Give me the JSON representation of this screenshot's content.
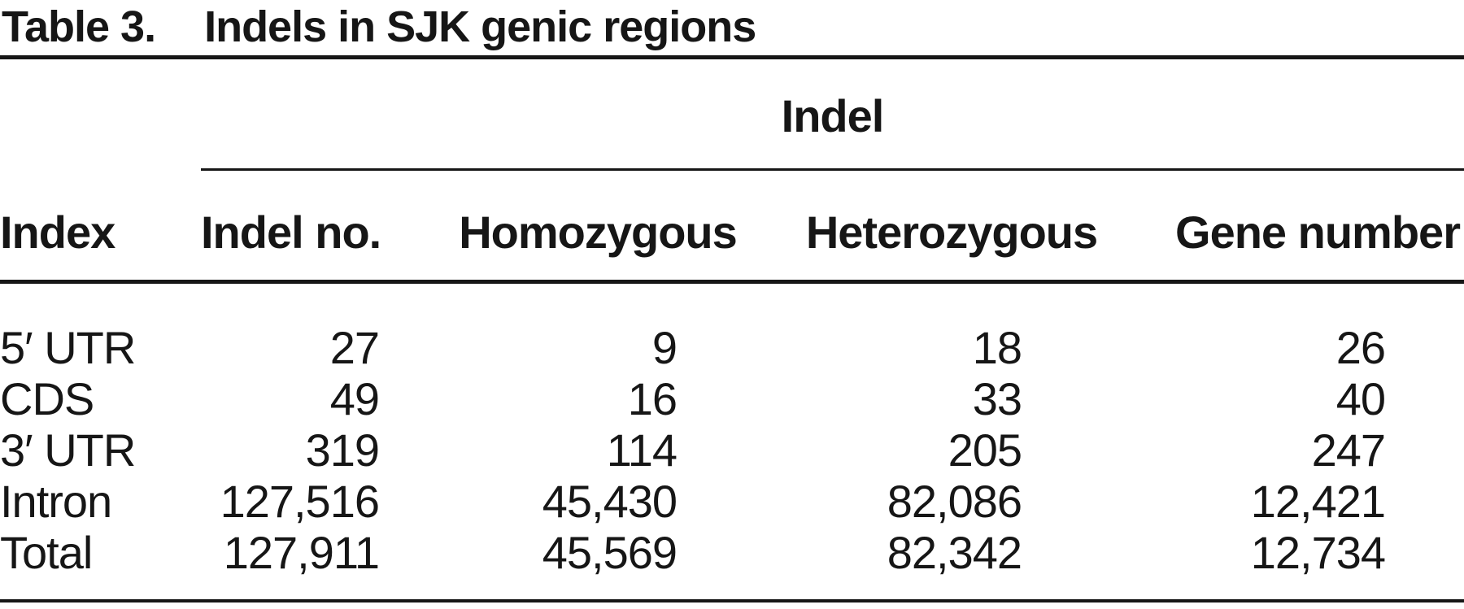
{
  "title": {
    "label": "Table 3.",
    "caption": "Indels in SJK genic regions"
  },
  "table": {
    "spanner_label": "Indel",
    "columns": [
      "Index",
      "Indel no.",
      "Homozygous",
      "Heterozygous",
      "Gene number"
    ],
    "rows": [
      [
        "5′ UTR",
        "27",
        "9",
        "18",
        "26"
      ],
      [
        "CDS",
        "49",
        "16",
        "33",
        "40"
      ],
      [
        "3′ UTR",
        "319",
        "114",
        "205",
        "247"
      ],
      [
        "Intron",
        "127,516",
        "45,430",
        "82,086",
        "12,421"
      ],
      [
        "Total",
        "127,911",
        "45,569",
        "82,342",
        "12,734"
      ]
    ]
  },
  "colors": {
    "ink": "#161616",
    "background": "#ffffff"
  }
}
